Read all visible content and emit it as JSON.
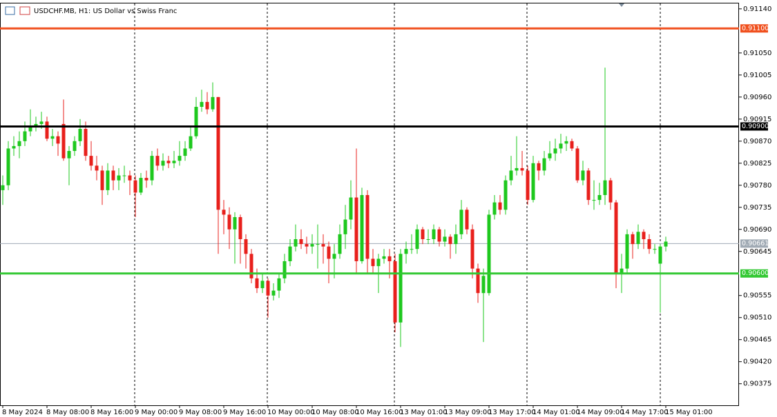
{
  "chart_data": {
    "type": "candlestick",
    "title": "USDCHF.MB, H1:  US Dollar vs Swiss Franc",
    "categories": [
      "8 May 2024",
      null,
      null,
      null,
      null,
      null,
      null,
      null,
      "8 May 08:00",
      null,
      null,
      null,
      null,
      null,
      null,
      null,
      "8 May 16:00",
      null,
      null,
      null,
      null,
      null,
      null,
      null,
      "9 May 00:00",
      null,
      null,
      null,
      null,
      null,
      null,
      null,
      "9 May 08:00",
      null,
      null,
      null,
      null,
      null,
      null,
      null,
      "9 May 16:00",
      null,
      null,
      null,
      null,
      null,
      null,
      null,
      "10 May 00:00",
      null,
      null,
      null,
      null,
      null,
      null,
      null,
      "10 May 08:00",
      null,
      null,
      null,
      null,
      null,
      null,
      null,
      "10 May 16:00",
      null,
      null,
      null,
      null,
      null,
      null,
      null,
      "13 May 01:00",
      null,
      null,
      null,
      null,
      null,
      null,
      null,
      "13 May 09:00",
      null,
      null,
      null,
      null,
      null,
      null,
      null,
      "13 May 17:00",
      null,
      null,
      null,
      null,
      null,
      null,
      null,
      "14 May 01:00",
      null,
      null,
      null,
      null,
      null,
      null,
      null,
      "14 May 09:00",
      null,
      null,
      null,
      null,
      null,
      null,
      null,
      "14 May 17:00",
      null,
      null,
      null,
      null,
      null,
      null,
      null,
      "15 May 01:00"
    ],
    "candles": [
      [
        0.9077,
        0.908,
        0.9074,
        0.9078
      ],
      [
        0.9078,
        0.9087,
        0.9077,
        0.90855
      ],
      [
        0.90855,
        0.9088,
        0.9084,
        0.9086
      ],
      [
        0.9086,
        0.9089,
        0.90835,
        0.9087
      ],
      [
        0.9087,
        0.9091,
        0.9086,
        0.9089
      ],
      [
        0.9089,
        0.90935,
        0.9088,
        0.909
      ],
      [
        0.909,
        0.9092,
        0.9089,
        0.90905
      ],
      [
        0.90905,
        0.9093,
        0.90895,
        0.9091
      ],
      [
        0.9091,
        0.9092,
        0.9087,
        0.90875
      ],
      [
        0.90875,
        0.90895,
        0.9086,
        0.9088
      ],
      [
        0.9088,
        0.9089,
        0.9084,
        0.90865
      ],
      [
        0.90905,
        0.90955,
        0.9083,
        0.90835
      ],
      [
        0.90835,
        0.9086,
        0.9078,
        0.9085
      ],
      [
        0.9085,
        0.9088,
        0.9084,
        0.9087
      ],
      [
        0.9087,
        0.90915,
        0.9086,
        0.90895
      ],
      [
        0.90895,
        0.9091,
        0.9083,
        0.9084
      ],
      [
        0.9084,
        0.9087,
        0.9081,
        0.9082
      ],
      [
        0.9082,
        0.9084,
        0.9079,
        0.9081
      ],
      [
        0.9081,
        0.9082,
        0.9074,
        0.9077
      ],
      [
        0.9077,
        0.90825,
        0.9076,
        0.9081
      ],
      [
        0.9081,
        0.9082,
        0.9077,
        0.9079
      ],
      [
        0.9079,
        0.90815,
        0.9077,
        0.908
      ],
      [
        0.908,
        0.9082,
        0.90785,
        0.908
      ],
      [
        0.908,
        0.9081,
        0.9076,
        0.9079
      ],
      [
        0.9079,
        0.908,
        0.90715,
        0.90765
      ],
      [
        0.90765,
        0.90805,
        0.9076,
        0.90795
      ],
      [
        0.90795,
        0.9081,
        0.90775,
        0.9079
      ],
      [
        0.9079,
        0.9085,
        0.9078,
        0.9084
      ],
      [
        0.9084,
        0.90855,
        0.9081,
        0.9082
      ],
      [
        0.9082,
        0.90845,
        0.9081,
        0.9083
      ],
      [
        0.9083,
        0.9084,
        0.90815,
        0.90825
      ],
      [
        0.90825,
        0.9085,
        0.90815,
        0.9083
      ],
      [
        0.9083,
        0.9087,
        0.9082,
        0.9084
      ],
      [
        0.9084,
        0.9087,
        0.9083,
        0.90855
      ],
      [
        0.90855,
        0.909,
        0.9085,
        0.9088
      ],
      [
        0.9088,
        0.9096,
        0.90875,
        0.9094
      ],
      [
        0.9094,
        0.90975,
        0.9093,
        0.9095
      ],
      [
        0.9095,
        0.9097,
        0.90925,
        0.90935
      ],
      [
        0.90935,
        0.9099,
        0.9093,
        0.9096
      ],
      [
        0.9096,
        0.9096,
        0.9064,
        0.9073
      ],
      [
        0.9073,
        0.9075,
        0.9068,
        0.9072
      ],
      [
        0.9072,
        0.90735,
        0.9065,
        0.9069
      ],
      [
        0.9069,
        0.90725,
        0.9062,
        0.90715
      ],
      [
        0.90715,
        0.9072,
        0.9062,
        0.9067
      ],
      [
        0.9067,
        0.9068,
        0.9061,
        0.9064
      ],
      [
        0.9064,
        0.9065,
        0.9058,
        0.9059
      ],
      [
        0.9059,
        0.9061,
        0.9056,
        0.9057
      ],
      [
        0.9057,
        0.906,
        0.9056,
        0.90585
      ],
      [
        0.90585,
        0.9059,
        0.9051,
        0.90555
      ],
      [
        0.90555,
        0.9058,
        0.90545,
        0.90565
      ],
      [
        0.90565,
        0.906,
        0.9055,
        0.9059
      ],
      [
        0.9059,
        0.9064,
        0.9058,
        0.90625
      ],
      [
        0.90625,
        0.9067,
        0.90615,
        0.90655
      ],
      [
        0.90655,
        0.907,
        0.90645,
        0.9067
      ],
      [
        0.9067,
        0.9069,
        0.9065,
        0.9066
      ],
      [
        0.9066,
        0.90675,
        0.9064,
        0.90655
      ],
      [
        0.90655,
        0.9068,
        0.9064,
        0.9066
      ],
      [
        0.9066,
        0.907,
        0.9061,
        0.9066
      ],
      [
        0.9066,
        0.9068,
        0.9062,
        0.90655
      ],
      [
        0.90655,
        0.90665,
        0.9058,
        0.9063
      ],
      [
        0.9063,
        0.9066,
        0.9059,
        0.9064
      ],
      [
        0.9064,
        0.907,
        0.9063,
        0.9068
      ],
      [
        0.9068,
        0.9074,
        0.9065,
        0.9071
      ],
      [
        0.9071,
        0.9079,
        0.9069,
        0.90755
      ],
      [
        0.90755,
        0.90855,
        0.906,
        0.90625
      ],
      [
        0.90625,
        0.90775,
        0.9062,
        0.9076
      ],
      [
        0.9076,
        0.9077,
        0.906,
        0.9063
      ],
      [
        0.9063,
        0.9065,
        0.906,
        0.90615
      ],
      [
        0.90615,
        0.9064,
        0.9056,
        0.9063
      ],
      [
        0.9063,
        0.9065,
        0.9062,
        0.90635
      ],
      [
        0.90635,
        0.9065,
        0.9059,
        0.90625
      ],
      [
        0.90625,
        0.9064,
        0.9048,
        0.905
      ],
      [
        0.905,
        0.9065,
        0.9045,
        0.9064
      ],
      [
        0.9064,
        0.90665,
        0.9062,
        0.9065
      ],
      [
        0.9065,
        0.9068,
        0.9064,
        0.9065
      ],
      [
        0.9065,
        0.907,
        0.9064,
        0.9069
      ],
      [
        0.9069,
        0.90695,
        0.9066,
        0.9067
      ],
      [
        0.9067,
        0.9069,
        0.9066,
        0.9067
      ],
      [
        0.9067,
        0.907,
        0.9066,
        0.9069
      ],
      [
        0.9069,
        0.90695,
        0.90655,
        0.90665
      ],
      [
        0.90665,
        0.9069,
        0.90655,
        0.90675
      ],
      [
        0.90675,
        0.9068,
        0.9063,
        0.9066
      ],
      [
        0.9066,
        0.907,
        0.9064,
        0.9068
      ],
      [
        0.9068,
        0.9075,
        0.9067,
        0.9073
      ],
      [
        0.9073,
        0.90735,
        0.9068,
        0.9069
      ],
      [
        0.9069,
        0.907,
        0.9059,
        0.9061
      ],
      [
        0.9061,
        0.9062,
        0.9054,
        0.9056
      ],
      [
        0.9056,
        0.9061,
        0.9046,
        0.90595
      ],
      [
        0.9056,
        0.9073,
        0.90555,
        0.9072
      ],
      [
        0.9072,
        0.9076,
        0.9071,
        0.90745
      ],
      [
        0.90745,
        0.9076,
        0.9072,
        0.9073
      ],
      [
        0.9073,
        0.908,
        0.9072,
        0.9079
      ],
      [
        0.9079,
        0.9084,
        0.9078,
        0.9081
      ],
      [
        0.9081,
        0.9088,
        0.908,
        0.90815
      ],
      [
        0.90815,
        0.9085,
        0.908,
        0.9081
      ],
      [
        0.9081,
        0.9082,
        0.9074,
        0.9075
      ],
      [
        0.9075,
        0.9084,
        0.90745,
        0.90825
      ],
      [
        0.90825,
        0.9083,
        0.9079,
        0.9081
      ],
      [
        0.9081,
        0.9085,
        0.908,
        0.90835
      ],
      [
        0.90835,
        0.9087,
        0.9083,
        0.90845
      ],
      [
        0.90845,
        0.90875,
        0.9083,
        0.90855
      ],
      [
        0.90855,
        0.90885,
        0.90845,
        0.90865
      ],
      [
        0.90865,
        0.9088,
        0.9085,
        0.9087
      ],
      [
        0.9087,
        0.90875,
        0.9085,
        0.90855
      ],
      [
        0.90855,
        0.9086,
        0.90785,
        0.9079
      ],
      [
        0.9079,
        0.9083,
        0.9078,
        0.9081
      ],
      [
        0.9081,
        0.90815,
        0.9074,
        0.9075
      ],
      [
        0.9075,
        0.9079,
        0.9073,
        0.9075
      ],
      [
        0.9075,
        0.90785,
        0.9074,
        0.9076
      ],
      [
        0.9076,
        0.9102,
        0.9074,
        0.9079
      ],
      [
        0.9079,
        0.90795,
        0.9073,
        0.90745
      ],
      [
        0.90745,
        0.9075,
        0.9057,
        0.906
      ],
      [
        0.906,
        0.9064,
        0.9056,
        0.9061
      ],
      [
        0.9061,
        0.9069,
        0.906,
        0.9068
      ],
      [
        0.9068,
        0.90685,
        0.9063,
        0.9066
      ],
      [
        0.9066,
        0.907,
        0.9065,
        0.90685
      ],
      [
        0.90685,
        0.9069,
        0.9065,
        0.9067
      ],
      [
        0.9067,
        0.9068,
        0.9064,
        0.9065
      ],
      [
        0.9065,
        0.9066,
        0.9064,
        0.9065
      ],
      [
        0.9062,
        0.9066,
        0.9052,
        0.90655
      ],
      [
        0.90655,
        0.90675,
        0.90645,
        0.90665
      ]
    ],
    "up_color": "#1ec81e",
    "down_color": "#e8201c",
    "ylim": [
      0.90331,
      0.91151
    ],
    "yticks": [
      {
        "value": 0.9114,
        "label": "0.91140"
      },
      {
        "value": 0.9105,
        "label": "0.91050"
      },
      {
        "value": 0.91005,
        "label": "0.91005"
      },
      {
        "value": 0.9096,
        "label": "0.90960"
      },
      {
        "value": 0.90915,
        "label": "0.90915"
      },
      {
        "value": 0.9087,
        "label": "0.90870"
      },
      {
        "value": 0.90825,
        "label": "0.90825"
      },
      {
        "value": 0.9078,
        "label": "0.90780"
      },
      {
        "value": 0.90735,
        "label": "0.90735"
      },
      {
        "value": 0.9069,
        "label": "0.90690"
      },
      {
        "value": 0.90645,
        "label": "0.90645"
      },
      {
        "value": 0.90555,
        "label": "0.90555"
      },
      {
        "value": 0.9051,
        "label": "0.90510"
      },
      {
        "value": 0.90465,
        "label": "0.90465"
      },
      {
        "value": 0.9042,
        "label": "0.90420"
      },
      {
        "value": 0.90375,
        "label": "0.90375"
      }
    ],
    "levels": [
      {
        "value": 0.911,
        "label": "0.91100",
        "color": "#f0501e"
      },
      {
        "value": 0.909,
        "label": "0.90900",
        "color": "#000000"
      },
      {
        "value": 0.906,
        "label": "0.90600",
        "color": "#32c832"
      }
    ],
    "current_price": {
      "value": 0.90661,
      "label": "0.90661",
      "color": "#a0aab4"
    }
  }
}
